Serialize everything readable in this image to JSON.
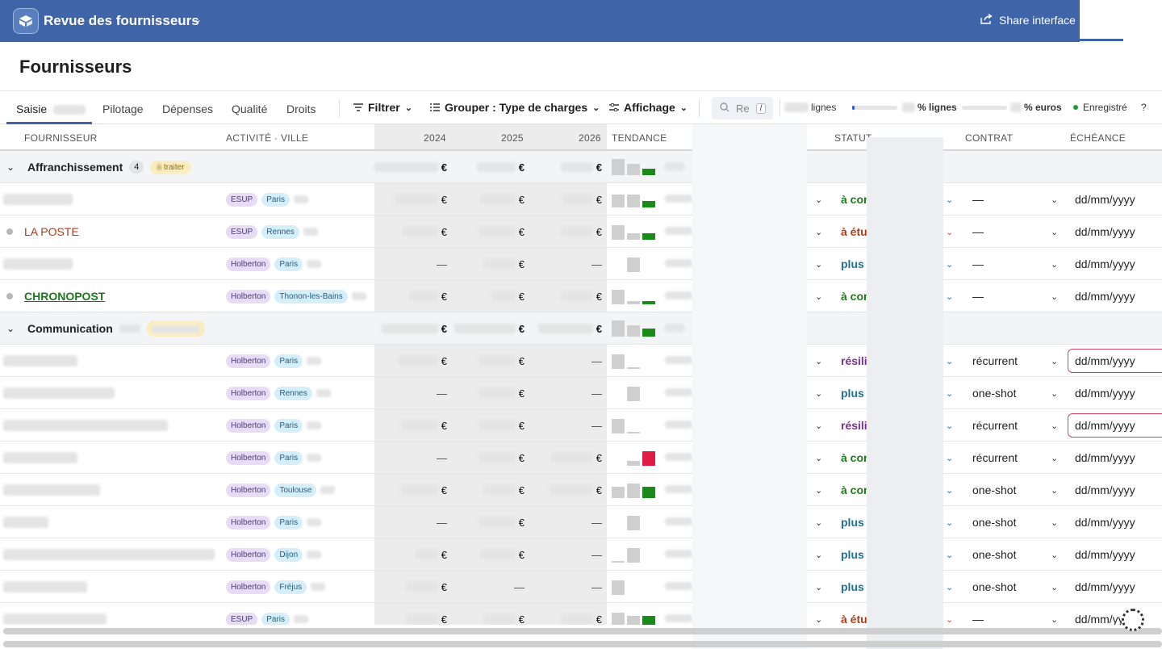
{
  "app": {
    "title": "Revue des fournisseurs",
    "share_label": "Share interface"
  },
  "page": {
    "title": "Fournisseurs"
  },
  "tabs": [
    {
      "label": "Saisie",
      "active": true
    },
    {
      "label": "Pilotage"
    },
    {
      "label": "Dépenses"
    },
    {
      "label": "Qualité"
    },
    {
      "label": "Droits"
    }
  ],
  "toolbar": {
    "filter_label": "Filtrer",
    "group_label": "Grouper : Type de charges",
    "display_label": "Affichage",
    "search_placeholder": "Re",
    "search_shortcut": "/",
    "rows_label": "lignes",
    "pct_rows_label": "% lignes",
    "pct_rows_progress": 0.06,
    "pct_euros_label": "% euros",
    "pct_euros_progress": 0,
    "saved_label": "Enregistré",
    "help_label": "?"
  },
  "columns": {
    "supplier": "FOURNISSEUR",
    "activity": "ACTIVITÉ · VILLE",
    "y2024": "2024",
    "y2025": "2025",
    "y2026": "2026",
    "trend": "TENDANCE",
    "status": "STATUT",
    "contract": "CONTRAT",
    "due": "ÉCHÉANCE"
  },
  "currency": "€",
  "dash": "—",
  "date_placeholder": "dd/mm/yyyy",
  "groups": {
    "g1": {
      "name": "Affranchissement",
      "count": "4",
      "badge": "traiter",
      "badge_prefix": "à"
    },
    "g2": {
      "name": "Communication"
    }
  },
  "rows": [
    {
      "name": "",
      "activity": "ESUP",
      "city": "Paris",
      "status": "à con",
      "contract": "—"
    },
    {
      "name": "LA POSTE",
      "activity": "ESUP",
      "city": "Rennes",
      "status": "à étu",
      "contract": "—"
    },
    {
      "name": "",
      "activity": "Holberton",
      "city": "Paris",
      "status": "plus",
      "contract": "—"
    },
    {
      "name": "CHRONOPOST",
      "activity": "Holberton",
      "city": "Thonon-les-Bains",
      "status": "à con",
      "contract": "—"
    },
    {
      "name": "",
      "activity": "Holberton",
      "city": "Paris",
      "status": "résili",
      "contract": "récurrent"
    },
    {
      "name": "",
      "activity": "Holberton",
      "city": "Rennes",
      "status": "plus",
      "contract": "one-shot"
    },
    {
      "name": "",
      "activity": "Holberton",
      "city": "Paris",
      "status": "résili",
      "contract": "récurrent"
    },
    {
      "name": "",
      "activity": "Holberton",
      "city": "Paris",
      "status": "à con",
      "contract": "récurrent"
    },
    {
      "name": "",
      "activity": "Holberton",
      "city": "Toulouse",
      "status": "à con",
      "contract": "one-shot"
    },
    {
      "name": "",
      "activity": "Holberton",
      "city": "Paris",
      "status": "plus",
      "contract": "one-shot"
    },
    {
      "name": "",
      "activity": "Holberton",
      "city": "Dijon",
      "status": "plus",
      "contract": "one-shot"
    },
    {
      "name": "",
      "activity": "Holberton",
      "city": "Fréjus",
      "status": "plus",
      "contract": "one-shot"
    },
    {
      "name": "",
      "activity": "ESUP",
      "city": "Paris",
      "status": "à étu",
      "contract": "—"
    }
  ],
  "colors": {
    "brand": "#3f65a8",
    "status_green": "#1a7a1a",
    "status_red": "#b23a1a",
    "status_blue": "#1d6f9a",
    "status_purple": "#7a2f9a",
    "trend_up": "#1a8a1a",
    "trend_down": "#e01c44"
  }
}
